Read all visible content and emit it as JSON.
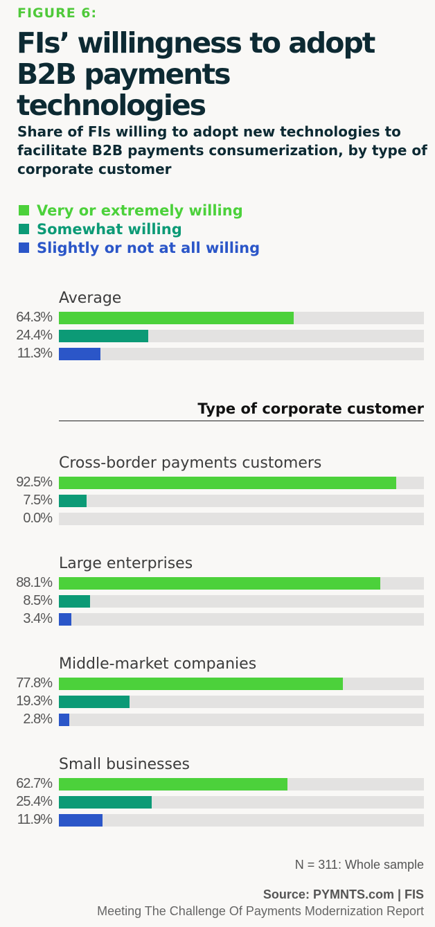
{
  "figure_label": "FIGURE 6:",
  "title": "FIs’ willingness to adopt B2B payments technologies",
  "subtitle": "Share of FIs willing to adopt new technologies to facilitate B2B payments consumerization, by type of corporate customer",
  "section_heading": "Type of corporate customer",
  "footnote": "N = 311: Whole sample",
  "source": "Source: PYMNTS.com  |  FIS",
  "report": "Meeting The Challenge Of Payments Modernization Report",
  "colors": {
    "very": "#4cd13b",
    "somewhat": "#0c9a76",
    "slightly": "#2b56c8",
    "track": "#e3e2e1"
  },
  "chart_data": {
    "type": "bar",
    "orientation": "horizontal",
    "xlim": [
      0,
      100
    ],
    "grid": false,
    "legend_placement": "top-left",
    "series": [
      {
        "name": "Very or extremely willing",
        "color": "#4cd13b"
      },
      {
        "name": "Somewhat willing",
        "color": "#0c9a76"
      },
      {
        "name": "Slightly or not at all willing",
        "color": "#2b56c8"
      }
    ],
    "groups": [
      {
        "category": "Average",
        "values": [
          64.3,
          24.4,
          11.3
        ],
        "labels": [
          "64.3%",
          "24.4%",
          "11.3%"
        ]
      },
      {
        "category": "Cross-border payments customers",
        "values": [
          92.5,
          7.5,
          0.0
        ],
        "labels": [
          "92.5%",
          "7.5%",
          "0.0%"
        ]
      },
      {
        "category": "Large enterprises",
        "values": [
          88.1,
          8.5,
          3.4
        ],
        "labels": [
          "88.1%",
          "8.5%",
          "3.4%"
        ]
      },
      {
        "category": "Middle-market companies",
        "values": [
          77.8,
          19.3,
          2.8
        ],
        "labels": [
          "77.8%",
          "19.3%",
          "2.8%"
        ]
      },
      {
        "category": "Small businesses",
        "values": [
          62.7,
          25.4,
          11.9
        ],
        "labels": [
          "62.7%",
          "25.4%",
          "11.9%"
        ]
      }
    ]
  }
}
